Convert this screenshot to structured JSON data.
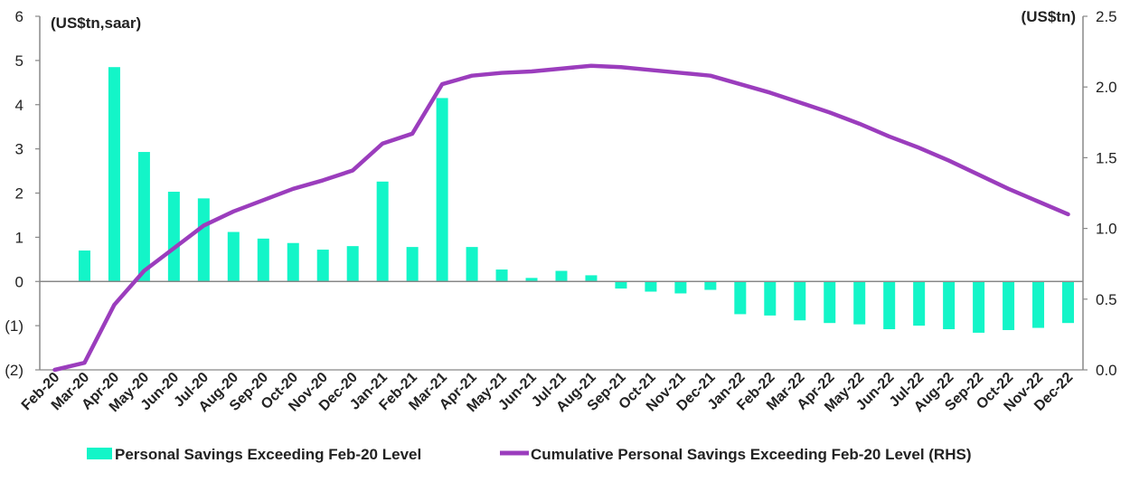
{
  "chart_data": {
    "type": "bar",
    "left_axis_unit": "(US$tn,saar)",
    "right_axis_unit": "(US$tn)",
    "left_ticks": [
      "6",
      "5",
      "4",
      "3",
      "2",
      "1",
      "0",
      "(1)",
      "(2)"
    ],
    "left_tick_values": [
      6,
      5,
      4,
      3,
      2,
      1,
      0,
      -1,
      -2
    ],
    "right_ticks": [
      "2.5",
      "2.0",
      "1.5",
      "1.0",
      "0.5",
      "0.0"
    ],
    "right_tick_values": [
      2.5,
      2.0,
      1.5,
      1.0,
      0.5,
      0.0
    ],
    "ylim_left": [
      -2,
      6
    ],
    "ylim_right": [
      0,
      2.5
    ],
    "categories": [
      "Feb-20",
      "Mar-20",
      "Apr-20",
      "May-20",
      "Jun-20",
      "Jul-20",
      "Aug-20",
      "Sep-20",
      "Oct-20",
      "Nov-20",
      "Dec-20",
      "Jan-21",
      "Feb-21",
      "Mar-21",
      "Apr-21",
      "May-21",
      "Jun-21",
      "Jul-21",
      "Aug-21",
      "Sep-21",
      "Oct-21",
      "Nov-21",
      "Dec-21",
      "Jan-22",
      "Feb-22",
      "Mar-22",
      "Apr-22",
      "May-22",
      "Jun-22",
      "Jul-22",
      "Aug-22",
      "Sep-22",
      "Oct-22",
      "Nov-22",
      "Dec-22"
    ],
    "series": [
      {
        "name": "Personal Savings Exceeding Feb-20 Level",
        "type": "bar",
        "axis": "left",
        "color": "#13f5c8",
        "values": [
          0,
          0.7,
          4.85,
          2.93,
          2.03,
          1.88,
          1.12,
          0.97,
          0.87,
          0.72,
          0.8,
          2.26,
          0.78,
          4.15,
          0.78,
          0.27,
          0.08,
          0.24,
          0.14,
          -0.16,
          -0.23,
          -0.27,
          -0.19,
          -0.74,
          -0.77,
          -0.88,
          -0.94,
          -0.97,
          -1.08,
          -1.0,
          -1.08,
          -1.16,
          -1.1,
          -1.05,
          -0.94
        ]
      },
      {
        "name": "Cumulative Personal Savings Exceeding Feb-20 Level (RHS)",
        "type": "line",
        "axis": "right",
        "color": "#9b3dbd",
        "values": [
          0,
          0.05,
          0.46,
          0.7,
          0.86,
          1.02,
          1.12,
          1.2,
          1.28,
          1.34,
          1.41,
          1.6,
          1.67,
          2.02,
          2.08,
          2.1,
          2.11,
          2.13,
          2.15,
          2.14,
          2.12,
          2.1,
          2.08,
          2.02,
          1.96,
          1.89,
          1.82,
          1.74,
          1.65,
          1.57,
          1.48,
          1.38,
          1.28,
          1.19,
          1.1
        ]
      }
    ],
    "grid": false,
    "legend": "bottom"
  }
}
